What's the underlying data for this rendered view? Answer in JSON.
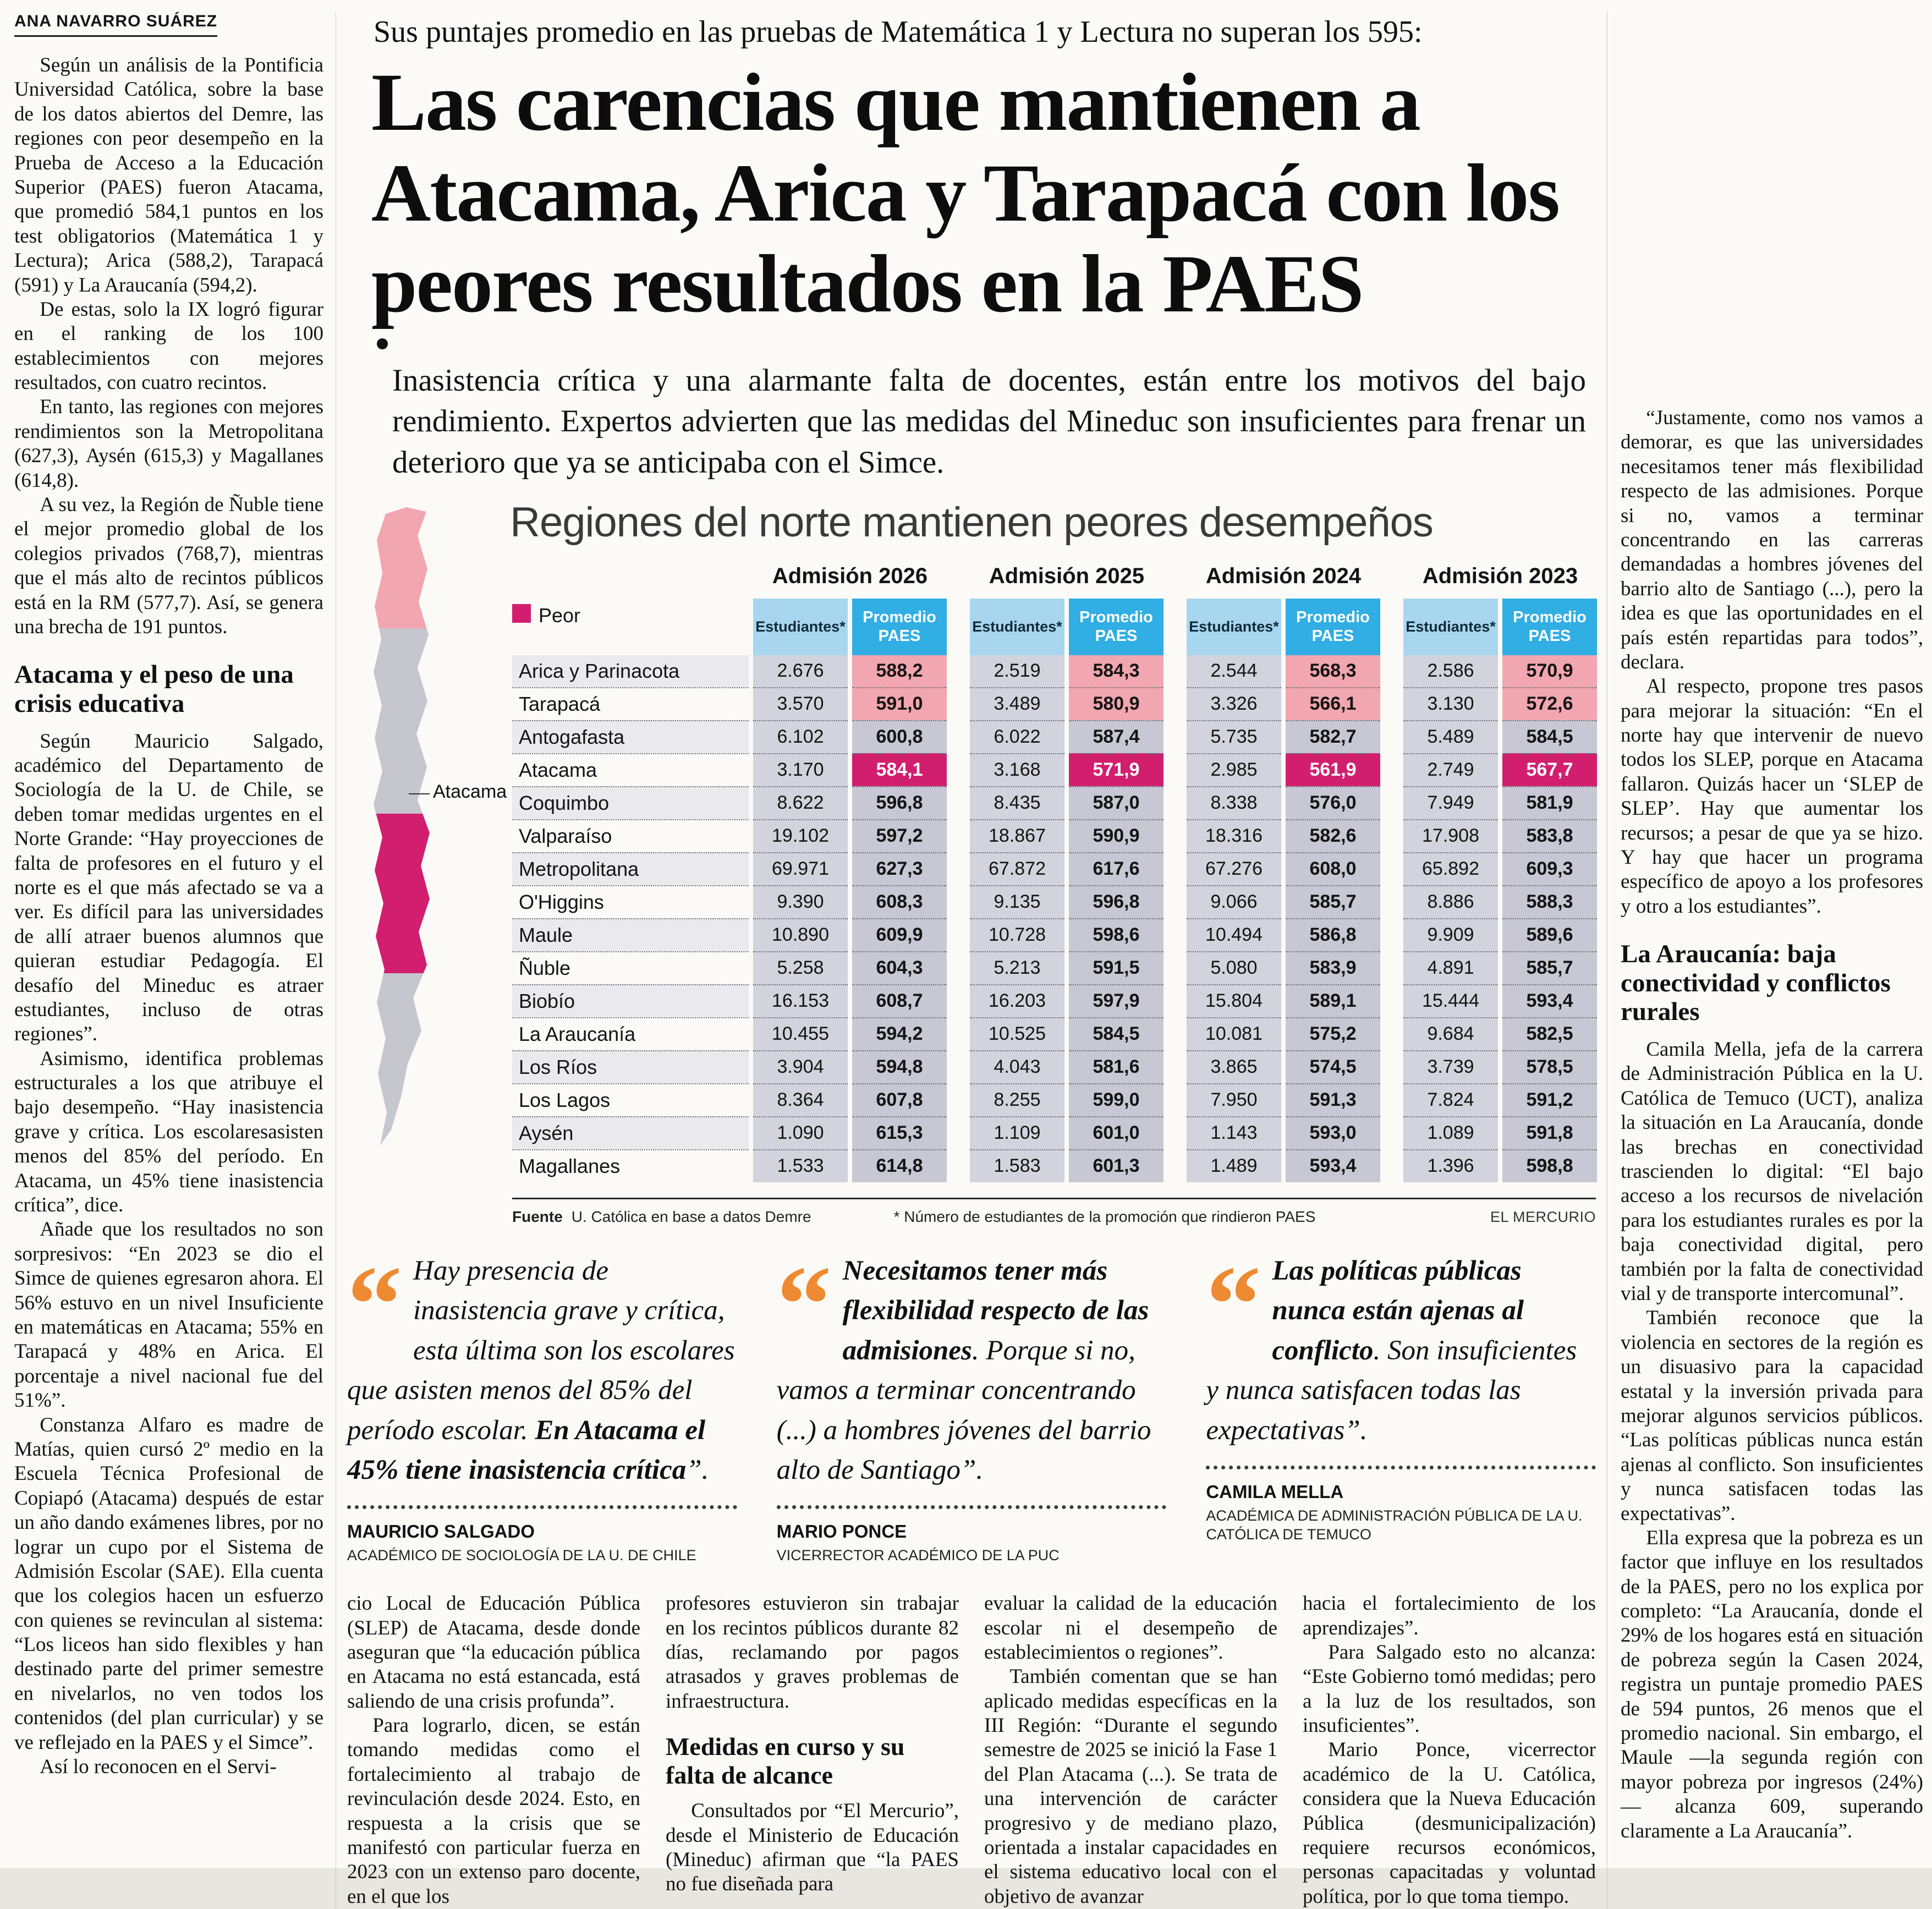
{
  "byline": "ANA NAVARRO SUÁREZ",
  "header": {
    "kicker": "Sus puntajes promedio en las pruebas de Matemática 1 y Lectura no superan los 595:",
    "headline_lines": [
      "Las carencias que mantienen a",
      "Atacama, Arica y Tarapacá con los",
      "peores resultados en la PAES"
    ],
    "deck": "Inasistencia crítica y una alarmante falta de docentes, están entre los motivos del bajo rendimiento. Expertos advierten que las medidas del Mineduc son insuficientes para frenar un deterioro que ya se anticipaba con el Simce."
  },
  "left_column": {
    "blocks": [
      {
        "type": "p",
        "text": "Según un análisis de la Pontificia Universidad Católica, sobre la base de los datos abiertos del Demre, las regiones con peor desempeño en la Prueba de Acceso a la Educación Superior (PAES) fueron Atacama, que promedió 584,1 puntos en los test obligatorios (Matemática 1 y Lectura); Arica (588,2), Tarapacá (591) y La Araucanía (594,2)."
      },
      {
        "type": "p",
        "text": "De estas, solo la IX logró figurar en el ranking de los 100 establecimientos con mejores resultados, con cuatro recintos."
      },
      {
        "type": "p",
        "text": "En tanto, las regiones con mejores rendimientos son la Metropolitana (627,3), Aysén (615,3) y Magallanes (614,8)."
      },
      {
        "type": "p",
        "text": "A su vez, la Región de Ñuble tiene el mejor promedio global de los colegios privados (768,7), mientras que el más alto de recintos públicos está en la RM (577,7). Así, se genera una brecha de 191 puntos."
      },
      {
        "type": "subhead",
        "text": "Atacama y el peso de una crisis educativa"
      },
      {
        "type": "p",
        "text": "Según Mauricio Salgado, académico del Departamento de Sociología de la U. de Chile, se deben tomar medidas urgentes en el Norte Grande: “Hay proyecciones de falta de profesores en el futuro y el norte es el que más afectado se va a ver. Es difícil para las universidades de allí atraer buenos alumnos que quieran estudiar Pedagogía. El desafío del Mineduc es atraer estudiantes, incluso de otras regiones”."
      },
      {
        "type": "p",
        "text": "Asimismo, identifica problemas estructurales a los que atribuye el bajo desempeño. “Hay inasistencia grave y crítica. Los escolaresasisten menos del 85% del período. En Atacama, un 45% tiene inasistencia crítica”, dice."
      },
      {
        "type": "p",
        "text": "Añade que los resultados no son sorpresivos: “En 2023 se dio el Simce de quienes egresaron ahora. El 56% estuvo en un nivel Insuficiente en matemáticas en Atacama; 55% en Tarapacá y 48% en Arica. El porcentaje a nivel nacional fue del 51%”."
      },
      {
        "type": "p",
        "text": "Constanza Alfaro es madre de Matías, quien cursó 2º medio en la Escuela Técnica Profesional de Copiapó (Atacama) después de estar un año dando exámenes libres, por no lograr un cupo por el Sistema de Admisión Escolar (SAE). Ella cuenta que los colegios hacen un esfuerzo con quienes se revinculan al sistema: “Los liceos han sido flexibles y han destinado parte del primer semestre en nivelarlos, no ven todos los contenidos (del plan curricular) y se ve reflejado en la PAES y el Simce”."
      },
      {
        "type": "p",
        "text": "Así lo reconocen en el Servi-"
      }
    ]
  },
  "infographic": {
    "title": "Regiones del norte mantienen peores desempeños",
    "legend_label": "Peor",
    "map_label": "Atacama",
    "admissions": [
      "Admisión 2026",
      "Admisión 2025",
      "Admisión 2024",
      "Admisión 2023"
    ],
    "col_students": "Estudiantes*",
    "col_avg": "Promedio PAES",
    "colors": {
      "worst": "#d21e6e",
      "pink": "#f2a6b0",
      "students_header": "#a9d6ef",
      "avg_header": "#31aee4"
    },
    "rows": [
      {
        "region": "Arica y Parinacota",
        "highlight": "pink",
        "values": [
          "2.676",
          "588,2",
          "2.519",
          "584,3",
          "2.544",
          "568,3",
          "2.586",
          "570,9"
        ]
      },
      {
        "region": "Tarapacá",
        "highlight": "pink",
        "values": [
          "3.570",
          "591,0",
          "3.489",
          "580,9",
          "3.326",
          "566,1",
          "3.130",
          "572,6"
        ]
      },
      {
        "region": "Antogafasta",
        "highlight": "none",
        "values": [
          "6.102",
          "600,8",
          "6.022",
          "587,4",
          "5.735",
          "582,7",
          "5.489",
          "584,5"
        ]
      },
      {
        "region": "Atacama",
        "highlight": "worst",
        "values": [
          "3.170",
          "584,1",
          "3.168",
          "571,9",
          "2.985",
          "561,9",
          "2.749",
          "567,7"
        ]
      },
      {
        "region": "Coquimbo",
        "highlight": "none",
        "values": [
          "8.622",
          "596,8",
          "8.435",
          "587,0",
          "8.338",
          "576,0",
          "7.949",
          "581,9"
        ]
      },
      {
        "region": "Valparaíso",
        "highlight": "none",
        "values": [
          "19.102",
          "597,2",
          "18.867",
          "590,9",
          "18.316",
          "582,6",
          "17.908",
          "583,8"
        ]
      },
      {
        "region": "Metropolitana",
        "highlight": "none",
        "values": [
          "69.971",
          "627,3",
          "67.872",
          "617,6",
          "67.276",
          "608,0",
          "65.892",
          "609,3"
        ]
      },
      {
        "region": "O'Higgins",
        "highlight": "none",
        "values": [
          "9.390",
          "608,3",
          "9.135",
          "596,8",
          "9.066",
          "585,7",
          "8.886",
          "588,3"
        ]
      },
      {
        "region": "Maule",
        "highlight": "none",
        "values": [
          "10.890",
          "609,9",
          "10.728",
          "598,6",
          "10.494",
          "586,8",
          "9.909",
          "589,6"
        ]
      },
      {
        "region": "Ñuble",
        "highlight": "none",
        "values": [
          "5.258",
          "604,3",
          "5.213",
          "591,5",
          "5.080",
          "583,9",
          "4.891",
          "585,7"
        ]
      },
      {
        "region": "Biobío",
        "highlight": "none",
        "values": [
          "16.153",
          "608,7",
          "16.203",
          "597,9",
          "15.804",
          "589,1",
          "15.444",
          "593,4"
        ]
      },
      {
        "region": "La Araucanía",
        "highlight": "none",
        "values": [
          "10.455",
          "594,2",
          "10.525",
          "584,5",
          "10.081",
          "575,2",
          "9.684",
          "582,5"
        ]
      },
      {
        "region": "Los Ríos",
        "highlight": "none",
        "values": [
          "3.904",
          "594,8",
          "4.043",
          "581,6",
          "3.865",
          "574,5",
          "3.739",
          "578,5"
        ]
      },
      {
        "region": "Los Lagos",
        "highlight": "none",
        "values": [
          "8.364",
          "607,8",
          "8.255",
          "599,0",
          "7.950",
          "591,3",
          "7.824",
          "591,2"
        ]
      },
      {
        "region": "Aysén",
        "highlight": "none",
        "values": [
          "1.090",
          "615,3",
          "1.109",
          "601,0",
          "1.143",
          "593,0",
          "1.089",
          "591,8"
        ]
      },
      {
        "region": "Magallanes",
        "highlight": "none",
        "values": [
          "1.533",
          "614,8",
          "1.583",
          "601,3",
          "1.489",
          "593,4",
          "1.396",
          "598,8"
        ]
      }
    ],
    "source_label": "Fuente",
    "source_value": "U. Católica en base a datos Demre",
    "footnote": "*  Número de estudiantes de la promoción que rindieron PAES",
    "credit": "EL MERCURIO"
  },
  "quotes": [
    {
      "pre": "Hay presencia de inasistencia grave y crítica, esta última son los escolares que asisten menos del 85% del período escolar. ",
      "bold": "En Atacama el 45% tiene inasistencia crítica",
      "post": "”.",
      "name": "MAURICIO SALGADO",
      "role": "ACADÉMICO DE SOCIOLOGÍA DE LA U. DE CHILE"
    },
    {
      "pre": "",
      "bold": "Necesitamos tener más flexibilidad respecto de las admisiones",
      "post": ". Porque si no, vamos a terminar concentrando (...) a hombres jóvenes del barrio alto de Santiago”.",
      "name": "MARIO PONCE",
      "role": "VICERRECTOR ACADÉMICO DE LA PUC"
    },
    {
      "pre": "",
      "bold": "Las políticas públicas nunca están ajenas al conflicto",
      "post": ". Son insuficientes y nunca satisfacen todas las expectativas”.",
      "name": "CAMILA MELLA",
      "role": "ACADÉMICA DE ADMINISTRACIÓN PÚBLICA DE LA U. CATÓLICA DE TEMUCO"
    }
  ],
  "bottom_columns": [
    {
      "blocks": [
        {
          "type": "cont",
          "text": "cio Local de Educación Pública (SLEP) de Atacama, desde donde aseguran que “la educación pública en Atacama no está estancada, está saliendo de una crisis profunda”."
        },
        {
          "type": "p",
          "text": "Para lograrlo, dicen, se están tomando medidas como el fortalecimiento al trabajo de revinculación desde 2024. Esto, en respuesta a la crisis que se manifestó con particular fuerza en 2023 con un extenso paro docente, en el que los"
        }
      ]
    },
    {
      "blocks": [
        {
          "type": "cont",
          "text": "profesores estuvieron sin trabajar en los recintos públicos durante 82 días, reclamando por pagos atrasados y graves problemas de infraestructura."
        },
        {
          "type": "subhead",
          "text": "Medidas en curso y su falta de alcance"
        },
        {
          "type": "p",
          "text": "Consultados por “El Mercurio”, desde el Ministerio de Educación (Mineduc) afirman que “la PAES no fue diseñada para"
        }
      ]
    },
    {
      "blocks": [
        {
          "type": "cont",
          "text": "evaluar la calidad de la educación escolar ni el desempeño de establecimientos o regiones”."
        },
        {
          "type": "p",
          "text": "También comentan que se han aplicado medidas específicas en la III Región: “Durante el segundo semestre de 2025 se inició la Fase 1 del Plan Atacama (...). Se trata de una intervención de carácter progresivo y de mediano plazo, orientada a instalar capacidades en el sistema educativo local con el objetivo de avanzar"
        }
      ]
    },
    {
      "blocks": [
        {
          "type": "cont",
          "text": "hacia el fortalecimiento de los aprendizajes”."
        },
        {
          "type": "p",
          "text": "Para Salgado esto no alcanza: “Este Gobierno tomó medidas; pero a la luz de los resultados, son insuficientes”."
        },
        {
          "type": "p",
          "text": "Mario Ponce, vicerrector académico de la U. Católica, considera que la Nueva Educación Pública (desmunicipalización) requiere recursos económicos, personas capacitadas y voluntad política, por lo que toma tiempo."
        }
      ]
    }
  ],
  "right_column": {
    "blocks": [
      {
        "type": "p",
        "text": "“Justamente, como nos vamos a demorar, es que las universidades necesitamos tener más flexibilidad respecto de las admisiones. Porque si no, vamos a terminar concentrando en las carreras demandadas a hombres jóvenes del barrio alto de Santiago (...), pero la idea es que las oportunidades en el país estén repartidas para todos”, declara."
      },
      {
        "type": "p",
        "text": "Al respecto, propone tres pasos para mejorar la situación: “En el norte hay que intervenir de nuevo todos los SLEP, porque en Atacama fallaron. Quizás hacer un ‘SLEP de SLEP’. Hay que aumentar los recursos; a pesar de que ya se hizo. Y hay que hacer un programa específico de apoyo a los profesores y otro a los estudiantes”."
      },
      {
        "type": "subhead",
        "text": "La Araucanía: baja conectividad y conflictos rurales"
      },
      {
        "type": "p",
        "text": "Camila Mella, jefa de la carrera de Administración Pública en la U. Católica de Temuco (UCT), analiza la situación en La Araucanía, donde las brechas en conectividad trascienden lo digital: “El bajo acceso a los recursos de nivelación para los estudiantes rurales es por la baja conectividad digital, pero también por la falta de conectividad vial y de transporte intercomunal”."
      },
      {
        "type": "p",
        "text": "También reconoce que la violencia en sectores de la región es un disuasivo para la capacidad estatal y la inversión privada para mejorar algunos servicios públicos. “Las políticas públicas nunca están ajenas al conflicto. Son insuficientes y nunca satisfacen todas las expectativas”."
      },
      {
        "type": "p",
        "text": "Ella expresa que la pobreza es un factor que influye en los resultados de la PAES, pero no los explica por completo: “La Araucanía, donde el 29% de los hogares está en situación de pobreza según la Casen 2024, registra un puntaje promedio PAES de 594 puntos, 26 menos que el promedio nacional. Sin embargo, el Maule —la segunda región con mayor pobreza por ingresos (24%)— alcanza 609, superando claramente a La Araucanía”."
      }
    ]
  }
}
